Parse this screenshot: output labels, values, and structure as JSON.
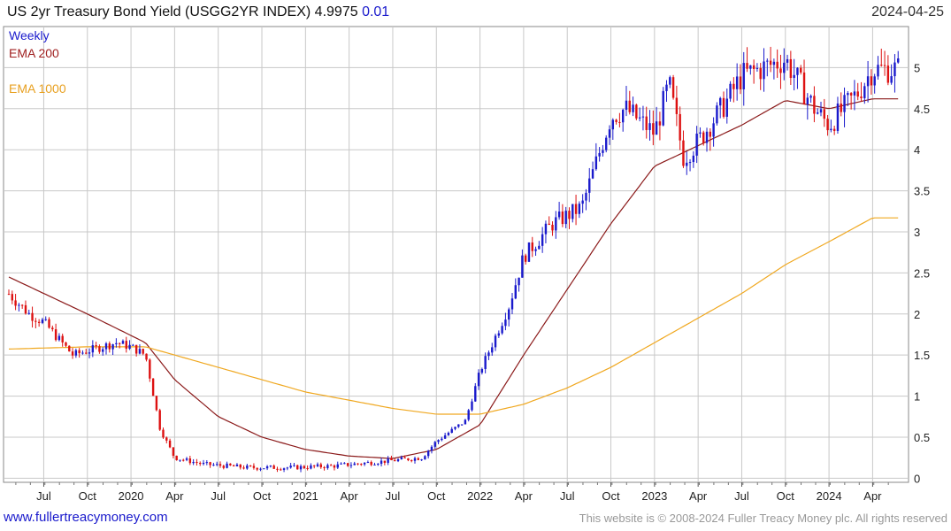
{
  "header": {
    "title": "US 2yr Treasury Bond Yield (USGG2YR INDEX) 4.9975",
    "change": "0.01",
    "date": "2024-04-25"
  },
  "legend": {
    "weekly": "Weekly",
    "ema200": "EMA 200",
    "ema1000": "EMA 1000"
  },
  "footer": {
    "website": "www.fullertreacymoney.com",
    "copyright": "This website is © 2008-2024 Fuller Treacy Money plc. All rights reserved"
  },
  "colors": {
    "up": "#1a1acc",
    "down": "#dd1111",
    "ema200": "#8b1a1a",
    "ema1000": "#f0a820",
    "grid": "#c8c8c8",
    "weekly_label": "#1a1acc",
    "ema200_label": "#a02020",
    "ema1000_label": "#e8a020"
  },
  "chart_data": {
    "type": "candlestick",
    "title": "US 2yr Treasury Bond Yield (USGG2YR INDEX) 4.9975",
    "x_ticks": [
      "Jul",
      "Oct",
      "2020",
      "Apr",
      "Jul",
      "Oct",
      "2021",
      "Apr",
      "Jul",
      "Oct",
      "2022",
      "Apr",
      "Jul",
      "Oct",
      "2023",
      "Apr",
      "Jul",
      "Oct",
      "2024",
      "Apr"
    ],
    "y_ticks": [
      "0",
      "0.5",
      "1",
      "1.5",
      "2",
      "2.5",
      "3",
      "3.5",
      "4",
      "4.5",
      "5"
    ],
    "ylim": [
      -0.05,
      5.5
    ],
    "grid": true,
    "series": [
      {
        "name": "Weekly",
        "kind": "price",
        "dates": [
          "2019-04",
          "2019-06",
          "2019-07",
          "2019-09",
          "2019-10",
          "2019-12",
          "2020-01",
          "2020-02",
          "2020-03",
          "2020-04",
          "2020-06",
          "2020-09",
          "2020-12",
          "2021-03",
          "2021-06",
          "2021-09",
          "2021-10",
          "2021-12",
          "2022-01",
          "2022-03",
          "2022-04",
          "2022-06",
          "2022-08",
          "2022-10",
          "2022-11",
          "2023-01",
          "2023-02",
          "2023-03",
          "2023-04",
          "2023-06",
          "2023-07",
          "2023-10",
          "2023-11",
          "2023-12",
          "2024-01",
          "2024-02",
          "2024-03",
          "2024-04"
        ],
        "values": [
          2.35,
          2.0,
          1.9,
          1.5,
          1.55,
          1.65,
          1.6,
          1.5,
          0.6,
          0.25,
          0.17,
          0.13,
          0.13,
          0.15,
          0.2,
          0.25,
          0.45,
          0.7,
          1.3,
          2.1,
          2.7,
          3.1,
          3.3,
          4.4,
          4.5,
          4.2,
          4.8,
          3.9,
          4.1,
          4.6,
          4.9,
          5.1,
          4.8,
          4.5,
          4.3,
          4.5,
          4.7,
          4.98
        ]
      },
      {
        "name": "EMA 200",
        "kind": "ema",
        "dates": [
          "2019-04",
          "2019-10",
          "2020-02",
          "2020-04",
          "2020-07",
          "2020-10",
          "2021-01",
          "2021-04",
          "2021-07",
          "2021-10",
          "2022-01",
          "2022-04",
          "2022-07",
          "2022-10",
          "2023-01",
          "2023-04",
          "2023-07",
          "2023-10",
          "2024-01",
          "2024-04"
        ],
        "values": [
          2.5,
          2.0,
          1.65,
          1.2,
          0.75,
          0.5,
          0.35,
          0.27,
          0.24,
          0.35,
          0.65,
          1.5,
          2.3,
          3.1,
          3.8,
          4.05,
          4.3,
          4.6,
          4.5,
          4.62
        ]
      },
      {
        "name": "EMA 1000",
        "kind": "ema",
        "dates": [
          "2019-04",
          "2019-10",
          "2020-02",
          "2020-07",
          "2021-01",
          "2021-07",
          "2021-10",
          "2022-01",
          "2022-04",
          "2022-07",
          "2022-10",
          "2023-01",
          "2023-04",
          "2023-07",
          "2023-10",
          "2024-01",
          "2024-04"
        ],
        "values": [
          1.57,
          1.6,
          1.6,
          1.35,
          1.05,
          0.85,
          0.78,
          0.78,
          0.9,
          1.1,
          1.35,
          1.65,
          1.95,
          2.25,
          2.6,
          2.88,
          3.17
        ]
      }
    ]
  }
}
